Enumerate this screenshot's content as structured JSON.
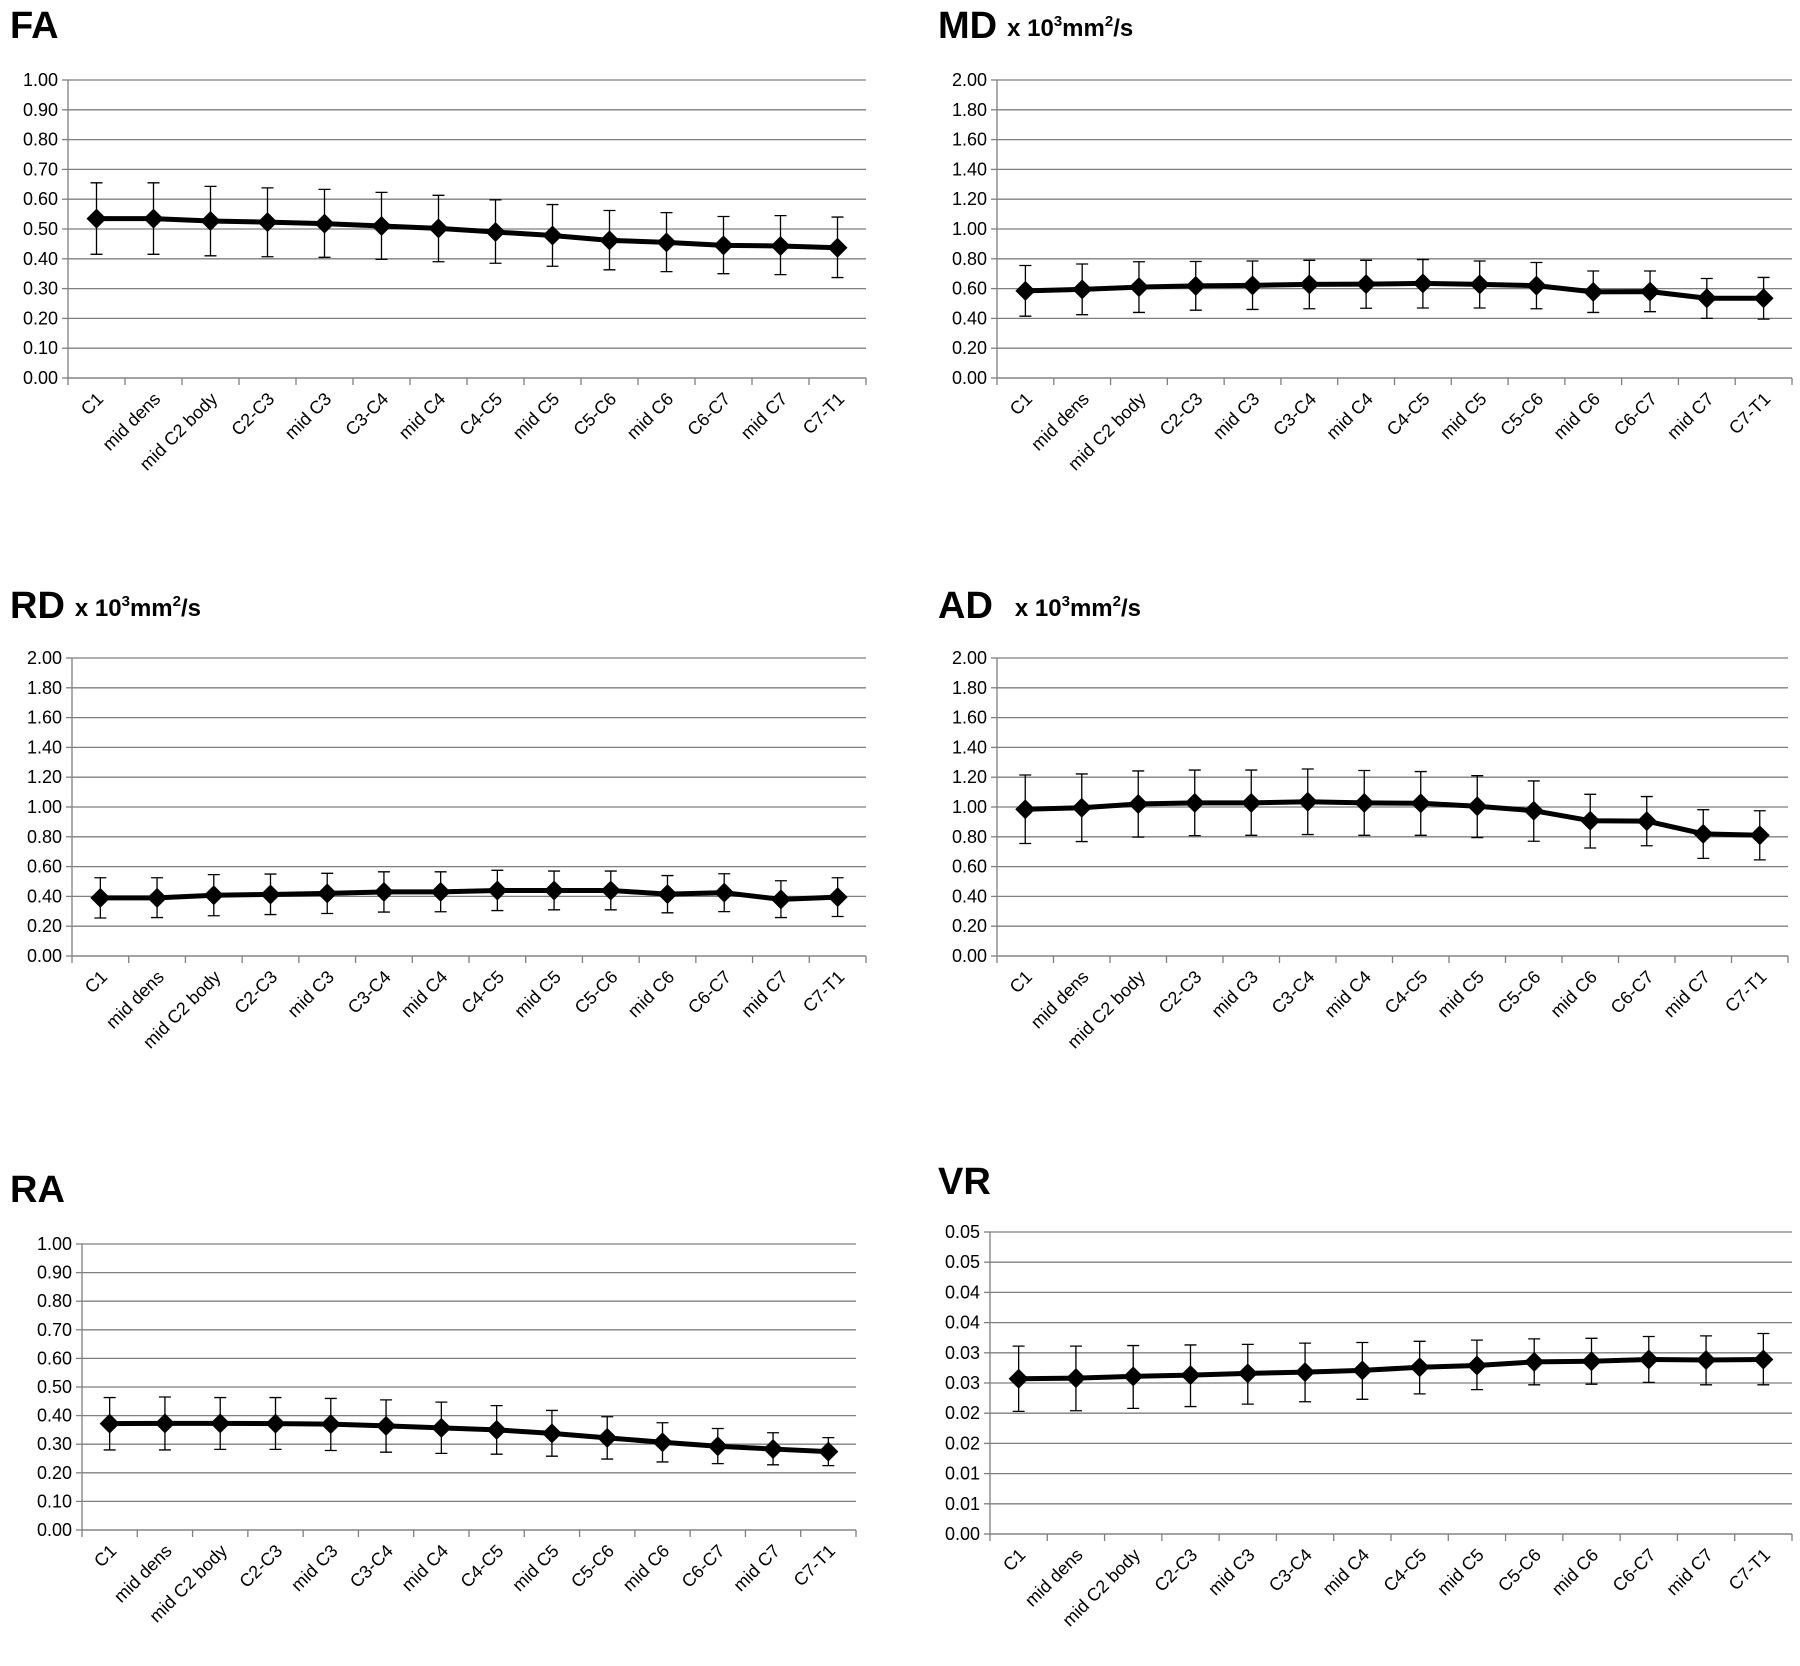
{
  "chart_data": [
    {
      "type": "line",
      "title": "FA",
      "unit": "",
      "categories": [
        "C1",
        "mid dens",
        "mid C2 body",
        "C2-C3",
        "mid C3",
        "C3-C4",
        "mid C4",
        "C4-C5",
        "mid C5",
        "C5-C6",
        "mid C6",
        "C6-C7",
        "mid C7",
        "C7-T1"
      ],
      "ylim": [
        0,
        1.0
      ],
      "ytick_step": 0.1,
      "ytick_labels": [
        "0.00",
        "0.10",
        "0.20",
        "0.30",
        "0.40",
        "0.50",
        "0.60",
        "0.70",
        "0.80",
        "0.90",
        "1.00"
      ],
      "grid": true,
      "series": [
        {
          "values": [
            0.535,
            0.535,
            0.527,
            0.523,
            0.518,
            0.51,
            0.502,
            0.49,
            0.478,
            0.462,
            0.455,
            0.445,
            0.443,
            0.437
          ],
          "err_low": [
            0.415,
            0.415,
            0.41,
            0.407,
            0.405,
            0.398,
            0.39,
            0.385,
            0.375,
            0.363,
            0.357,
            0.35,
            0.347,
            0.337
          ],
          "err_high": [
            0.655,
            0.655,
            0.643,
            0.638,
            0.633,
            0.623,
            0.613,
            0.598,
            0.582,
            0.562,
            0.555,
            0.542,
            0.545,
            0.54
          ]
        }
      ]
    },
    {
      "type": "line",
      "title": "MD",
      "unit": "x 10",
      "unit_sup": "3",
      "unit_mid": "mm",
      "unit_sup2": "2",
      "unit_end": "/s",
      "categories": [
        "C1",
        "mid dens",
        "mid C2 body",
        "C2-C3",
        "mid C3",
        "C3-C4",
        "mid C4",
        "C4-C5",
        "mid C5",
        "C5-C6",
        "mid C6",
        "C6-C7",
        "mid C7",
        "C7-T1"
      ],
      "ylim": [
        0,
        2.0
      ],
      "ytick_step": 0.2,
      "ytick_labels": [
        "0.00",
        "0.20",
        "0.40",
        "0.60",
        "0.80",
        "1.00",
        "1.20",
        "1.40",
        "1.60",
        "1.80",
        "2.00"
      ],
      "grid": true,
      "series": [
        {
          "values": [
            0.585,
            0.595,
            0.61,
            0.618,
            0.622,
            0.628,
            0.63,
            0.635,
            0.628,
            0.62,
            0.578,
            0.58,
            0.535,
            0.535
          ],
          "err_low": [
            0.415,
            0.425,
            0.44,
            0.455,
            0.46,
            0.465,
            0.468,
            0.47,
            0.47,
            0.465,
            0.44,
            0.445,
            0.4,
            0.395
          ],
          "err_high": [
            0.755,
            0.765,
            0.78,
            0.782,
            0.785,
            0.79,
            0.79,
            0.795,
            0.785,
            0.775,
            0.718,
            0.718,
            0.668,
            0.675
          ]
        }
      ]
    },
    {
      "type": "line",
      "title": "RD",
      "unit": "x 10",
      "unit_sup": "3",
      "unit_mid": "mm",
      "unit_sup2": "2",
      "unit_end": "/s",
      "categories": [
        "C1",
        "mid dens",
        "mid C2 body",
        "C2-C3",
        "mid C3",
        "C3-C4",
        "mid C4",
        "C4-C5",
        "mid C5",
        "C5-C6",
        "mid C6",
        "C6-C7",
        "mid C7",
        "C7-T1"
      ],
      "ylim": [
        0,
        2.0
      ],
      "ytick_step": 0.2,
      "ytick_labels": [
        "0.00",
        "0.20",
        "0.40",
        "0.60",
        "0.80",
        "1.00",
        "1.20",
        "1.40",
        "1.60",
        "1.80",
        "2.00"
      ],
      "grid": true,
      "series": [
        {
          "values": [
            0.39,
            0.39,
            0.408,
            0.413,
            0.42,
            0.43,
            0.43,
            0.44,
            0.44,
            0.44,
            0.415,
            0.425,
            0.38,
            0.395
          ],
          "err_low": [
            0.255,
            0.258,
            0.27,
            0.278,
            0.285,
            0.295,
            0.297,
            0.305,
            0.31,
            0.31,
            0.29,
            0.298,
            0.258,
            0.265
          ],
          "err_high": [
            0.525,
            0.525,
            0.546,
            0.55,
            0.555,
            0.565,
            0.565,
            0.575,
            0.57,
            0.57,
            0.54,
            0.552,
            0.505,
            0.525
          ]
        }
      ]
    },
    {
      "type": "line",
      "title": "AD",
      "unit": "x 10",
      "unit_sup": "3",
      "unit_mid": "mm",
      "unit_sup2": "2",
      "unit_end": "/s",
      "categories": [
        "C1",
        "mid dens",
        "mid C2 body",
        "C2-C3",
        "mid C3",
        "C3-C4",
        "mid C4",
        "C4-C5",
        "mid C5",
        "C5-C6",
        "mid C6",
        "C6-C7",
        "mid C7",
        "C7-T1"
      ],
      "ylim": [
        0,
        2.0
      ],
      "ytick_step": 0.2,
      "ytick_labels": [
        "0.00",
        "0.20",
        "0.40",
        "0.60",
        "0.80",
        "1.00",
        "1.20",
        "1.40",
        "1.60",
        "1.80",
        "2.00"
      ],
      "grid": true,
      "series": [
        {
          "values": [
            0.985,
            0.995,
            1.02,
            1.028,
            1.028,
            1.035,
            1.028,
            1.025,
            1.005,
            0.975,
            0.908,
            0.905,
            0.82,
            0.81
          ],
          "err_low": [
            0.755,
            0.768,
            0.798,
            0.808,
            0.81,
            0.815,
            0.81,
            0.81,
            0.795,
            0.77,
            0.725,
            0.74,
            0.655,
            0.645
          ],
          "err_high": [
            1.215,
            1.222,
            1.242,
            1.248,
            1.248,
            1.255,
            1.245,
            1.238,
            1.21,
            1.175,
            1.085,
            1.07,
            0.982,
            0.975
          ]
        }
      ]
    },
    {
      "type": "line",
      "title": "RA",
      "unit": "",
      "categories": [
        "C1",
        "mid dens",
        "mid C2 body",
        "C2-C3",
        "mid C3",
        "C3-C4",
        "mid C4",
        "C4-C5",
        "mid C5",
        "C5-C6",
        "mid C6",
        "C6-C7",
        "mid C7",
        "C7-T1"
      ],
      "ylim": [
        0,
        1.0
      ],
      "ytick_step": 0.1,
      "ytick_labels": [
        "0.00",
        "0.10",
        "0.20",
        "0.30",
        "0.40",
        "0.50",
        "0.60",
        "0.70",
        "0.80",
        "0.90",
        "1.00"
      ],
      "grid": true,
      "series": [
        {
          "values": [
            0.372,
            0.373,
            0.373,
            0.372,
            0.37,
            0.364,
            0.357,
            0.35,
            0.338,
            0.322,
            0.307,
            0.293,
            0.283,
            0.274
          ],
          "err_low": [
            0.28,
            0.28,
            0.282,
            0.282,
            0.278,
            0.272,
            0.268,
            0.265,
            0.258,
            0.248,
            0.238,
            0.232,
            0.228,
            0.225
          ],
          "err_high": [
            0.463,
            0.465,
            0.463,
            0.463,
            0.46,
            0.455,
            0.447,
            0.435,
            0.418,
            0.396,
            0.375,
            0.355,
            0.34,
            0.323
          ]
        }
      ]
    },
    {
      "type": "line",
      "title": "VR",
      "unit": "",
      "categories": [
        "C1",
        "mid dens",
        "mid C2 body",
        "C2-C3",
        "mid C3",
        "C3-C4",
        "mid C4",
        "C4-C5",
        "mid C5",
        "C5-C6",
        "mid C6",
        "C6-C7",
        "mid C7",
        "C7-T1"
      ],
      "ylim": [
        0,
        0.05
      ],
      "ytick_step": 0.005,
      "ytick_labels": [
        "0.00",
        "0.01",
        "0.01",
        "0.02",
        "0.02",
        "0.03",
        "0.03",
        "0.04",
        "0.04",
        "0.05",
        "0.05"
      ],
      "grid": true,
      "series": [
        {
          "values": [
            0.0257,
            0.0258,
            0.0261,
            0.0263,
            0.0266,
            0.0268,
            0.0271,
            0.0276,
            0.0279,
            0.0285,
            0.0286,
            0.0289,
            0.0288,
            0.0289
          ],
          "err_low": [
            0.0203,
            0.0204,
            0.0208,
            0.0211,
            0.0215,
            0.0219,
            0.0223,
            0.0232,
            0.0239,
            0.0247,
            0.0248,
            0.0251,
            0.0247,
            0.0247
          ],
          "err_high": [
            0.0311,
            0.0311,
            0.0312,
            0.0313,
            0.0314,
            0.0316,
            0.0317,
            0.0319,
            0.0321,
            0.0323,
            0.0324,
            0.0327,
            0.0328,
            0.0332
          ]
        }
      ]
    }
  ]
}
